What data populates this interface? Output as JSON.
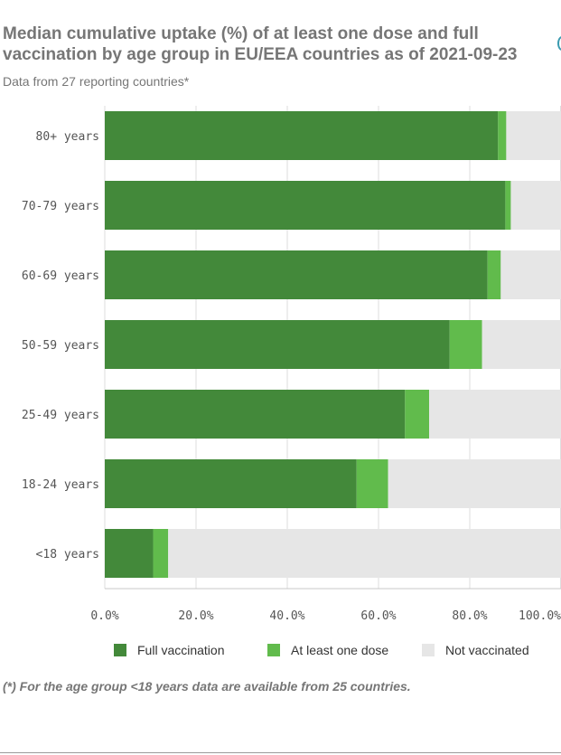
{
  "header": {
    "title": "Median cumulative uptake (%) of at least one dose and full vaccination by age group in EU/EEA countries as of 2021-09-23",
    "subtitle": "Data from 27 reporting countries*"
  },
  "colors": {
    "full": "#43893a",
    "partial": "#61bb4c",
    "none": "#e6e6e6",
    "axis_text": "#555555"
  },
  "chart_data": {
    "type": "bar",
    "orientation": "horizontal",
    "stacked": true,
    "categories": [
      "80+ years",
      "70-79 years",
      "60-69 years",
      "50-59 years",
      "25-49 years",
      "18-24 years",
      "<18 years"
    ],
    "series": [
      {
        "name": "Full vaccination",
        "values": [
          86.2,
          87.8,
          83.9,
          75.6,
          65.8,
          55.2,
          10.6
        ]
      },
      {
        "name": "At least one dose",
        "values": [
          1.8,
          1.2,
          2.9,
          7.1,
          5.3,
          6.9,
          3.3
        ]
      },
      {
        "name": "Not vaccinated",
        "values": [
          12.0,
          11.0,
          13.2,
          17.3,
          28.9,
          37.9,
          86.1
        ]
      }
    ],
    "xlim": [
      0,
      100
    ],
    "xticks": [
      "0.0%",
      "20.0%",
      "40.0%",
      "60.0%",
      "80.0%",
      "100.0%"
    ],
    "grid": true,
    "legend": "bottom"
  },
  "legend": [
    {
      "label": "Full vaccination"
    },
    {
      "label": "At least one dose"
    },
    {
      "label": "Not vaccinated"
    }
  ],
  "footnote": "(*) For the age group <18 years data are available from 25 countries."
}
